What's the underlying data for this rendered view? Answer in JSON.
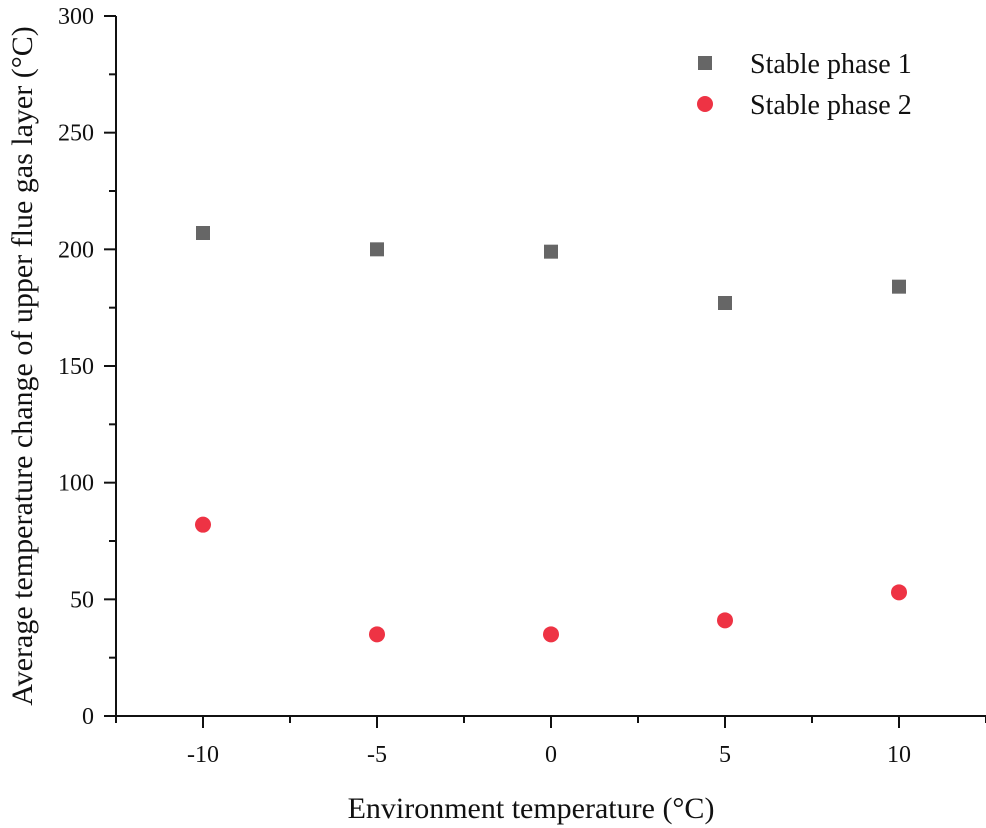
{
  "chart_data": {
    "type": "scatter",
    "title": "",
    "xlabel": "Environment temperature (°C)",
    "ylabel": "Average temperature change of upper flue gas layer (°C)",
    "xlim": [
      -12.5,
      12.5
    ],
    "ylim": [
      0,
      300
    ],
    "xticks": [
      -10,
      -5,
      0,
      5,
      10
    ],
    "xtick_labels": [
      "-10",
      "-5",
      "0",
      "5",
      "10"
    ],
    "yticks": [
      0,
      50,
      100,
      150,
      200,
      250,
      300
    ],
    "ytick_labels": [
      "0",
      "50",
      "100",
      "150",
      "200",
      "250",
      "300"
    ],
    "grid": false,
    "legend_position": "top-right",
    "series": [
      {
        "name": "Stable phase 1",
        "marker": "square",
        "color": "#666666",
        "x": [
          -10,
          -5,
          0,
          5,
          10
        ],
        "y": [
          207,
          200,
          199,
          177,
          184
        ]
      },
      {
        "name": "Stable phase 2",
        "marker": "circle",
        "color": "#ee3344",
        "x": [
          -10,
          -5,
          0,
          5,
          10
        ],
        "y": [
          82,
          35,
          35,
          41,
          53
        ]
      }
    ]
  }
}
